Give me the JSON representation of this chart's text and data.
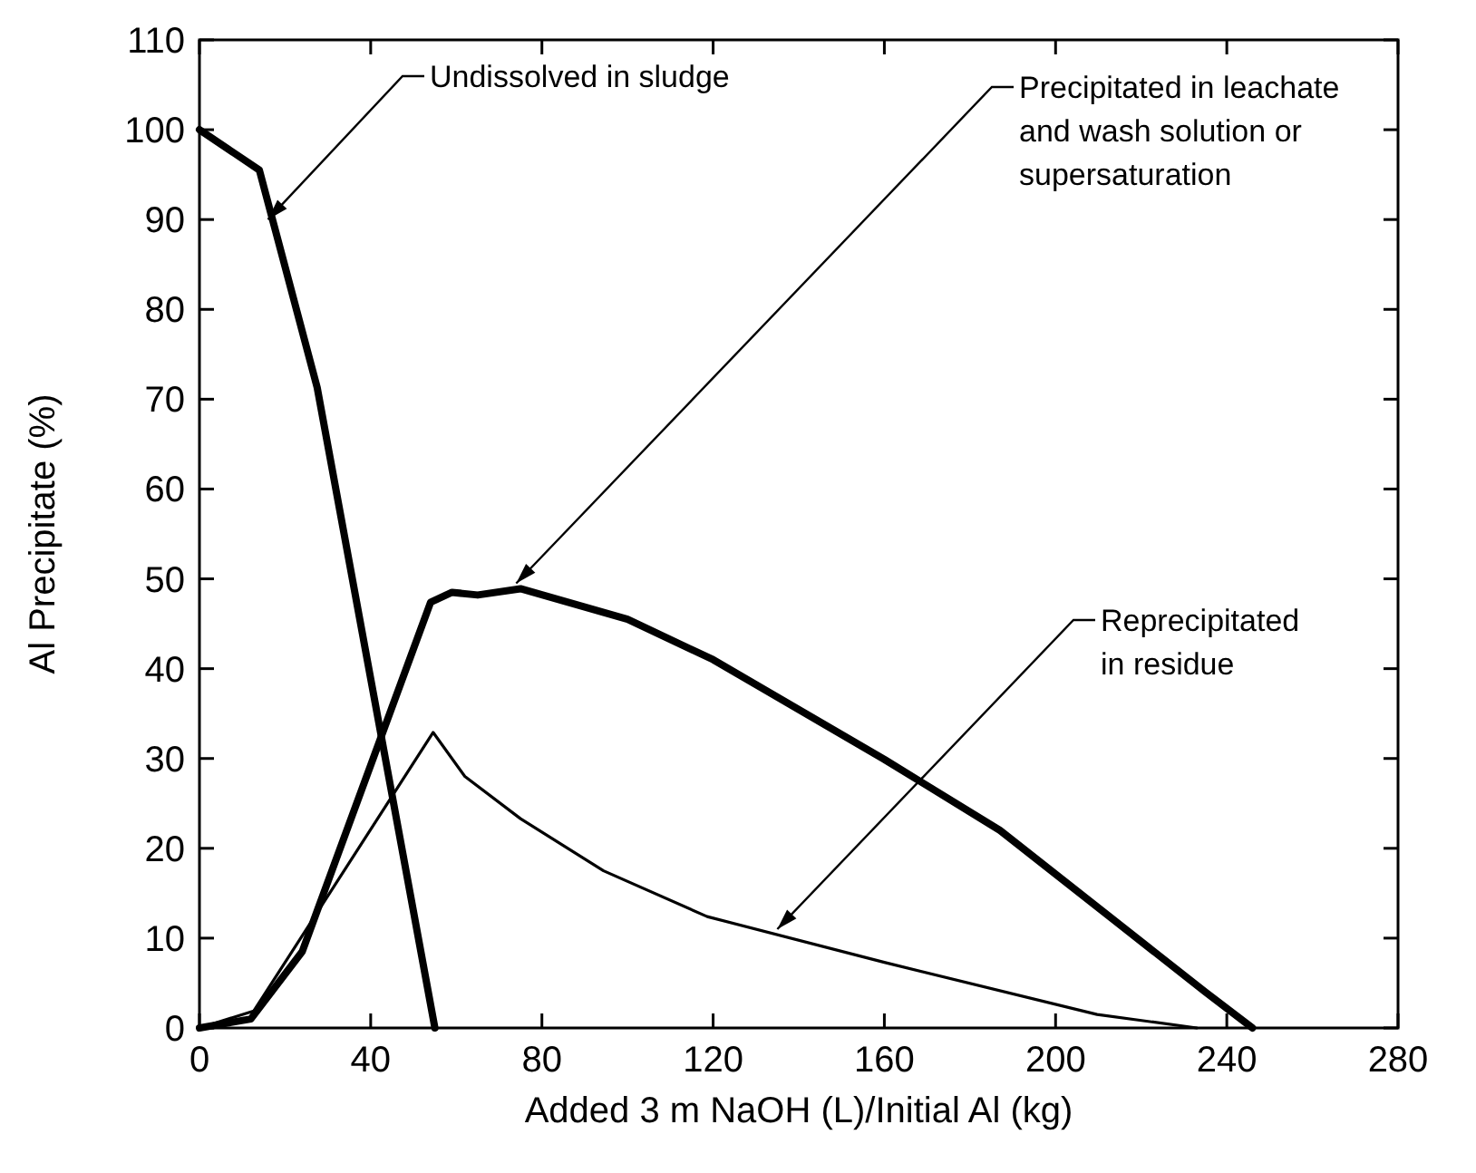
{
  "chart_data": {
    "type": "line",
    "xlabel": "Added 3 m NaOH (L)/Initial Al (kg)",
    "ylabel": "Al Precipitate (%)",
    "xlim": [
      0,
      280
    ],
    "ylim": [
      0,
      110
    ],
    "xticks": [
      0,
      40,
      80,
      120,
      160,
      200,
      240,
      280
    ],
    "yticks": [
      0,
      10,
      20,
      30,
      40,
      50,
      60,
      70,
      80,
      90,
      100,
      110
    ],
    "grid": false,
    "marker": "none",
    "line_style": "solid",
    "series": [
      {
        "color": "#000000",
        "x": [
          0,
          14,
          27.5,
          55
        ],
        "values": [
          100,
          95.5,
          71.3,
          0
        ]
      },
      {
        "color": "#000000",
        "x": [
          0,
          12,
          24,
          54,
          59,
          65,
          75,
          100,
          120,
          160,
          187,
          235,
          246
        ],
        "values": [
          0,
          1,
          8.5,
          47.4,
          48.5,
          48.2,
          48.9,
          45.5,
          41,
          29.9,
          22,
          4,
          0
        ]
      },
      {
        "color": "#000000",
        "x": [
          0,
          12.7,
          54.6,
          62,
          75,
          94.4,
          118.6,
          160,
          209.7,
          233
        ],
        "values": [
          0,
          1.9,
          32.9,
          28,
          23.3,
          17.5,
          12.4,
          7.3,
          1.5,
          0
        ]
      }
    ],
    "annotations": [
      {
        "text": "Undissolved in sludge",
        "x": 16,
        "y": 90
      },
      {
        "text": "Precipitated in leachate\nand wash solution or\nsupersaturation",
        "x": 74,
        "y": 49.5
      },
      {
        "text": "Reprecipitated\nin residue",
        "x": 135,
        "y": 11
      }
    ]
  }
}
